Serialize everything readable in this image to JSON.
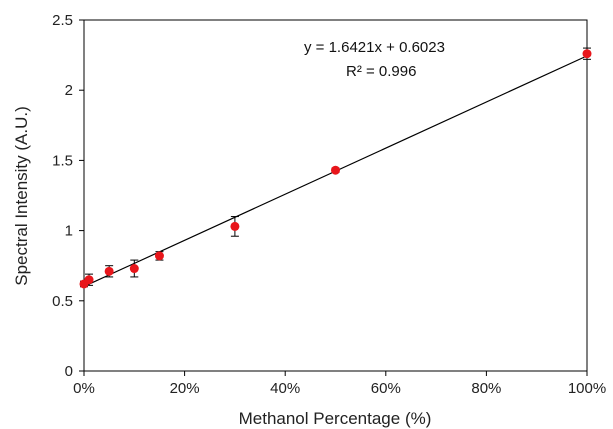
{
  "chart_data": {
    "type": "scatter",
    "xlabel": "Methanol Percentage (%)",
    "ylabel": "Spectral Intensity (A.U.)",
    "xlim": [
      0,
      1
    ],
    "ylim": [
      0,
      2.5
    ],
    "x_ticks": [
      0,
      0.2,
      0.4,
      0.6,
      0.8,
      1.0
    ],
    "x_tick_labels": [
      "0%",
      "20%",
      "40%",
      "60%",
      "80%",
      "100%"
    ],
    "y_ticks": [
      0,
      0.5,
      1,
      1.5,
      2,
      2.5
    ],
    "y_tick_labels": [
      "0",
      "0.5",
      "1",
      "1.5",
      "2",
      "2.5"
    ],
    "grid": false,
    "series": [
      {
        "x": [
          0,
          0.01,
          0.05,
          0.1,
          0.15,
          0.3,
          0.5,
          1.0
        ],
        "y": [
          0.62,
          0.65,
          0.71,
          0.73,
          0.82,
          1.03,
          1.43,
          2.26
        ],
        "err": [
          0.02,
          0.04,
          0.04,
          0.06,
          0.03,
          0.07,
          0.015,
          0.04
        ]
      }
    ],
    "trendline": {
      "slope": 1.6421,
      "intercept": 0.6023
    },
    "annotations": {
      "equation": "y = 1.6421x  + 0.6023",
      "r2": "R² = 0.996"
    },
    "colors": {
      "points": "#e8161b",
      "line": "#000000",
      "axis": "#000000"
    }
  }
}
